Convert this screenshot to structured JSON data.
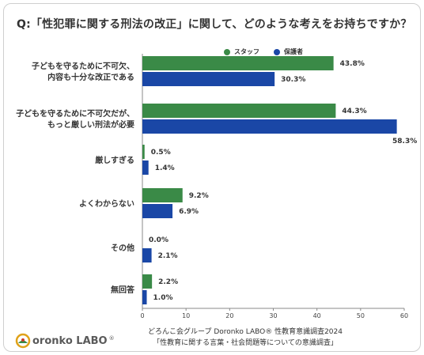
{
  "chart_data": {
    "type": "bar",
    "orientation": "horizontal",
    "title": "Q:「性犯罪に関する刑法の改正」に関して、どのような考えをお持ちですか？",
    "categories": [
      [
        "子どもを守るために不可欠、",
        "内容も十分な改正である"
      ],
      [
        "子どもを守るために不可欠だが、",
        "もっと厳しい刑法が必要"
      ],
      [
        "厳しすぎる"
      ],
      [
        "よくわからない"
      ],
      [
        "その他"
      ],
      [
        "無回答"
      ]
    ],
    "series": [
      {
        "name": "スタッフ",
        "color": "#3a8a47",
        "values": [
          43.8,
          44.3,
          0.5,
          9.2,
          0.0,
          2.2
        ]
      },
      {
        "name": "保護者",
        "color": "#1a47a6",
        "values": [
          30.3,
          58.3,
          1.4,
          6.9,
          2.1,
          1.0
        ]
      }
    ],
    "value_labels": [
      [
        "43.8%",
        "44.3%",
        "0.5%",
        "9.2%",
        "0.0%",
        "2.2%"
      ],
      [
        "30.3%",
        "58.3%",
        "1.4%",
        "6.9%",
        "2.1%",
        "1.0%"
      ]
    ],
    "xlim": [
      0,
      60
    ],
    "xticks": [
      0,
      10,
      20,
      30,
      40,
      50,
      60
    ],
    "legend_position": "top-right",
    "grid": false
  },
  "footer": {
    "line1": "どろんこ会グループ Doronko LABO® 性教育意識調査2024",
    "line2": "「性教育に関する言葉・社会問題等についての意識調査」"
  },
  "logo": {
    "text": "oronko LABO",
    "mark": "®"
  },
  "colors": {
    "staff": "#3a8a47",
    "parent": "#1a47a6"
  }
}
